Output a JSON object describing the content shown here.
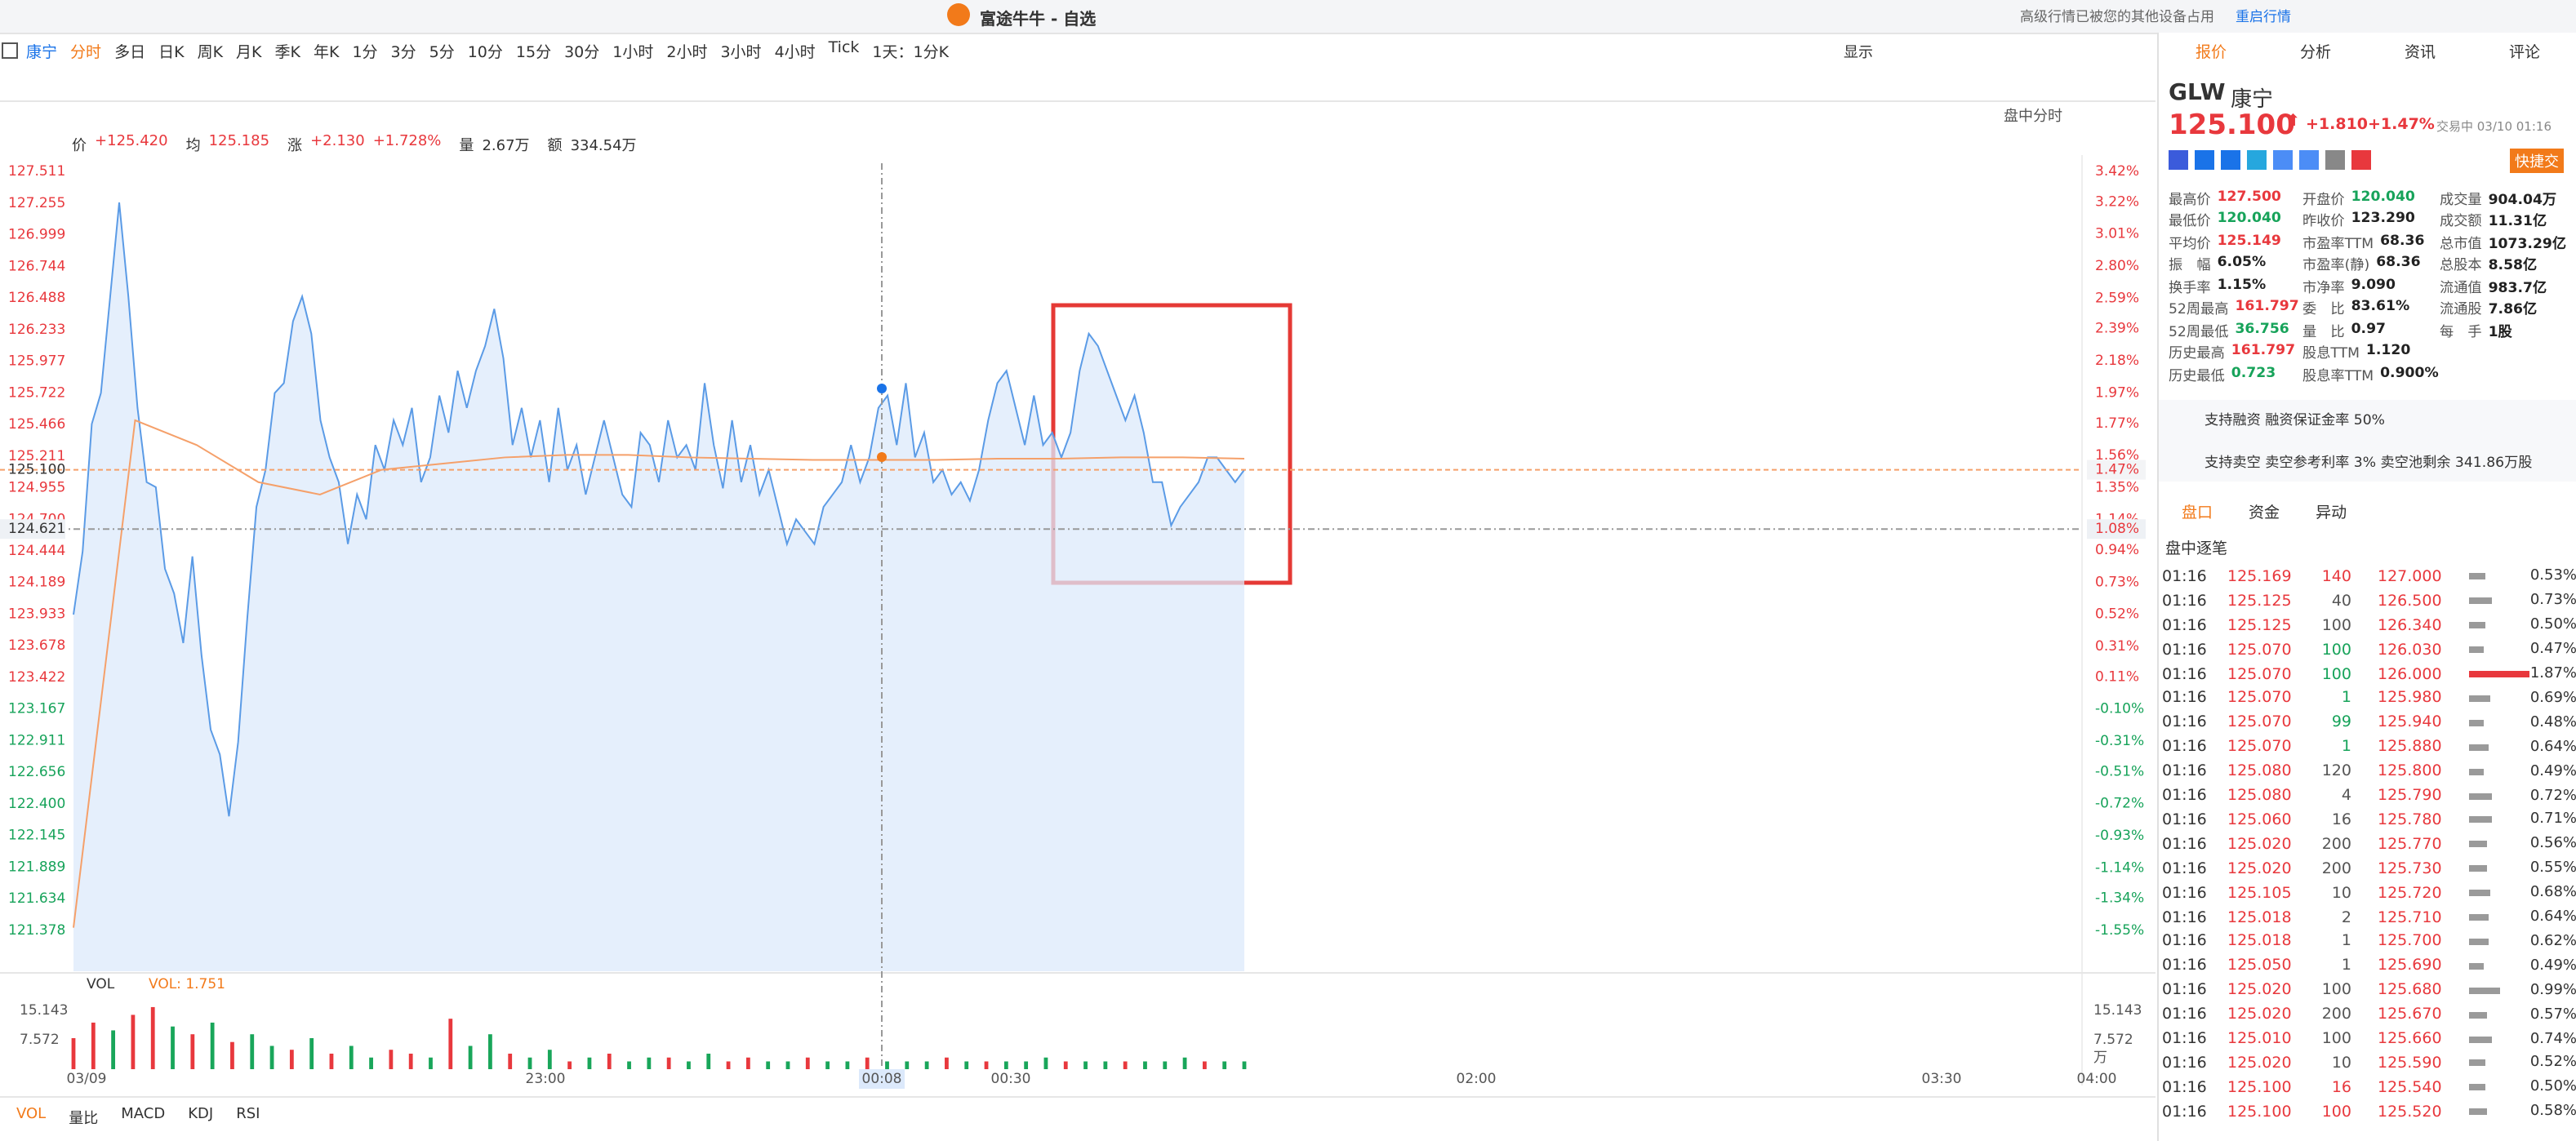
{
  "window": {
    "title": "富途牛牛 - 自选",
    "notice": "高级行情已被您的其他设备占用",
    "restart": "重启行情"
  },
  "toolbar": {
    "stock": "康宁",
    "periods": [
      "分时",
      "多日",
      "日K",
      "周K",
      "月K",
      "季K",
      "年K",
      "1分",
      "3分",
      "5分",
      "10分",
      "15分",
      "30分",
      "1小时",
      "2小时",
      "3小时",
      "4小时",
      "Tick",
      "1天：1分K"
    ],
    "display": "显示"
  },
  "chart": {
    "type": "line",
    "header": {
      "price_label": "价",
      "price": "+125.420",
      "avg_label": "均",
      "avg": "125.185",
      "chg_label": "涨",
      "chg": "+2.130",
      "chg_pct": "+1.728%",
      "vol_label": "量",
      "vol": "2.67万",
      "amt_label": "额",
      "amt": "334.54万"
    },
    "mode": "盘中分时",
    "colors": {
      "up": "#e8383d",
      "down": "#17a35a"
    },
    "ylim": [
      121.378,
      127.511
    ],
    "yticks": [
      127.511,
      127.255,
      126.999,
      126.744,
      126.488,
      126.233,
      125.977,
      125.722,
      125.466,
      125.211,
      124.955,
      {
        "value": 124.7,
        "label": "124.700"
      },
      124.444,
      124.189,
      123.933,
      123.678,
      123.422,
      123.167,
      122.911,
      122.656,
      {
        "value": 122.4,
        "label": "122.400"
      },
      122.145,
      121.889,
      121.634,
      121.378
    ],
    "y2lim": [
      -1.55,
      3.42
    ],
    "y2ticks": [
      {
        "value": 3.42,
        "label": "3.42%"
      },
      {
        "value": 3.22,
        "label": "3.22%"
      },
      {
        "value": 3.01,
        "label": "3.01%"
      },
      {
        "value": 2.8,
        "label": "2.80%"
      },
      {
        "value": 2.59,
        "label": "2.59%"
      },
      {
        "value": 2.39,
        "label": "2.39%"
      },
      {
        "value": 2.18,
        "label": "2.18%"
      },
      {
        "value": 1.97,
        "label": "1.97%"
      },
      {
        "value": 1.77,
        "label": "1.77%"
      },
      {
        "value": 1.56,
        "label": "1.56%"
      },
      {
        "value": 1.35,
        "label": "1.35%"
      },
      {
        "value": 1.14,
        "label": "1.14%"
      },
      {
        "value": 0.94,
        "label": "0.94%"
      },
      {
        "value": 0.73,
        "label": "0.73%"
      },
      {
        "value": 0.52,
        "label": "0.52%"
      },
      {
        "value": 0.31,
        "label": "0.31%"
      },
      {
        "value": 0.11,
        "label": "0.11%"
      },
      {
        "value": -0.1,
        "label": "-0.10%"
      },
      {
        "value": -0.31,
        "label": "-0.31%"
      },
      {
        "value": -0.51,
        "label": "-0.51%"
      },
      {
        "value": -0.72,
        "label": "-0.72%"
      },
      {
        "value": -0.93,
        "label": "-0.93%"
      },
      {
        "value": -1.14,
        "label": "-1.14%"
      },
      {
        "value": -1.34,
        "label": "-1.34%"
      },
      {
        "value": -1.55,
        "label": "-1.55%"
      }
    ],
    "x_labels": [
      "03/09",
      "23:00",
      "00:08",
      "00:30",
      "02:00",
      "03:30",
      "04:00"
    ],
    "current": {
      "price": {
        "value": 125.1,
        "label": "125.100"
      },
      "pct": {
        "value": 1.47,
        "label": "1.47%"
      }
    },
    "crosshair": {
      "price": 124.621,
      "pct": {
        "value": 1.08,
        "label": "1.08%"
      }
    },
    "price": {
      "color": "#5b9be6",
      "values": [
        123.93,
        124.44,
        125.47,
        125.72,
        126.49,
        127.26,
        126.5,
        125.6,
        125.0,
        124.96,
        124.3,
        124.1,
        123.7,
        124.4,
        123.6,
        123.0,
        122.8,
        122.3,
        122.9,
        123.9,
        124.8,
        125.1,
        125.72,
        125.8,
        126.3,
        126.5,
        126.2,
        125.5,
        125.2,
        125.0,
        124.5,
        124.9,
        124.7,
        125.3,
        125.1,
        125.5,
        125.3,
        125.6,
        125.0,
        125.2,
        125.7,
        125.4,
        125.9,
        125.6,
        125.9,
        126.1,
        126.4,
        126.0,
        125.3,
        125.6,
        125.2,
        125.5,
        125.0,
        125.6,
        125.1,
        125.3,
        124.9,
        125.2,
        125.5,
        125.2,
        124.9,
        124.8,
        125.4,
        125.3,
        125.0,
        125.5,
        125.2,
        125.3,
        125.1,
        125.8,
        125.3,
        124.95,
        125.5,
        125.0,
        125.3,
        124.9,
        125.1,
        124.8,
        124.5,
        124.7,
        124.6,
        124.5,
        124.8,
        124.9,
        125.0,
        125.3,
        125.0,
        125.2,
        125.6,
        125.7,
        125.3,
        125.8,
        125.2,
        125.4,
        125.0,
        125.1,
        124.9,
        125.0,
        124.85,
        125.1,
        125.5,
        125.8,
        125.9,
        125.6,
        125.3,
        125.7,
        125.3,
        125.4,
        125.2,
        125.4,
        125.9,
        126.2,
        126.1,
        125.9,
        125.7,
        125.5,
        125.7,
        125.4,
        125.0,
        125.0,
        124.65,
        124.8,
        124.9,
        125.0,
        125.2,
        125.2,
        125.1,
        125.0,
        125.1
      ]
    },
    "average": {
      "color": "#f5a06a",
      "values": [
        121.4,
        125.5,
        125.3,
        125.0,
        124.9,
        125.1,
        125.15,
        125.2,
        125.22,
        125.22,
        125.2,
        125.19,
        125.18,
        125.18,
        125.18,
        125.19,
        125.19,
        125.2,
        125.2,
        125.19
      ]
    },
    "volume": {
      "label": "VOL",
      "value_label": "VOL: 1.751",
      "ylim": [
        0,
        15.143
      ],
      "yticks": [
        15.143,
        7.572
      ],
      "unit": "万",
      "values": [
        8,
        12,
        10,
        14,
        16,
        11,
        9,
        12,
        7,
        9,
        6,
        5,
        8,
        4,
        6,
        3,
        5,
        4,
        3,
        13,
        6,
        9,
        4,
        3,
        5,
        2,
        3,
        4,
        2,
        3,
        3,
        2,
        4,
        2,
        3,
        2,
        2,
        3,
        2,
        2,
        3,
        2,
        2,
        2,
        3,
        2,
        2,
        2,
        2,
        3,
        2,
        2,
        2,
        2,
        2,
        2,
        3,
        2,
        2,
        2
      ],
      "colors": [
        "#e8383d",
        "#e8383d",
        "#19a65a",
        "#e8383d",
        "#e8383d",
        "#19a65a",
        "#e8383d",
        "#19a65a",
        "#e8383d",
        "#19a65a",
        "#19a65a",
        "#e8383d",
        "#19a65a",
        "#e8383d",
        "#19a65a",
        "#19a65a",
        "#e8383d",
        "#e8383d",
        "#19a65a",
        "#e8383d",
        "#19a65a",
        "#19a65a",
        "#e8383d",
        "#19a65a",
        "#19a65a",
        "#e8383d",
        "#19a65a",
        "#e8383d",
        "#19a65a",
        "#19a65a",
        "#e8383d",
        "#19a65a",
        "#19a65a",
        "#e8383d",
        "#e8383d",
        "#19a65a",
        "#19a65a",
        "#e8383d",
        "#19a65a",
        "#19a65a",
        "#e8383d",
        "#19a65a",
        "#19a65a",
        "#19a65a",
        "#e8383d",
        "#19a65a",
        "#e8383d",
        "#19a65a",
        "#19a65a",
        "#19a65a",
        "#e8383d",
        "#19a65a",
        "#19a65a",
        "#e8383d",
        "#19a65a",
        "#19a65a",
        "#19a65a",
        "#e8383d",
        "#19a65a",
        "#19a65a"
      ]
    },
    "indicator_tabs": [
      "VOL",
      "量比",
      "MACD",
      "KDJ",
      "RSI"
    ]
  },
  "side": {
    "tabs": [
      "报价",
      "分析",
      "资讯",
      "评论"
    ],
    "symbol": "GLW",
    "name": "康宁",
    "price": "125.100",
    "change": "+1.810",
    "change_pct": "+1.47%",
    "status": "交易中 03/10 01:16",
    "quick": "快捷交",
    "stats": [
      [
        {
          "label": "最高价",
          "value": "127.500",
          "color": "#e8383d"
        },
        {
          "label": "开盘价",
          "value": "120.040",
          "color": "#17a35a"
        },
        {
          "label": "成交量",
          "value": "904.04万"
        }
      ],
      [
        {
          "label": "最低价",
          "value": "120.040",
          "color": "#17a35a"
        },
        {
          "label": "昨收价",
          "value": "123.290"
        },
        {
          "label": "成交额",
          "value": "11.31亿"
        }
      ],
      [
        {
          "label": "平均价",
          "value": "125.149",
          "color": "#e8383d"
        },
        {
          "label": "市盈率TTM",
          "value": "68.36"
        },
        {
          "label": "总市值",
          "value": "1073.29亿"
        }
      ],
      [
        {
          "label": "振　幅",
          "value": "6.05%"
        },
        {
          "label": "市盈率(静)",
          "value": "68.36"
        },
        {
          "label": "总股本",
          "value": "8.58亿"
        }
      ],
      [
        {
          "label": "换手率",
          "value": "1.15%"
        },
        {
          "label": "市净率",
          "value": "9.090"
        },
        {
          "label": "流通值",
          "value": "983.7亿"
        }
      ],
      [
        {
          "label": "52周最高",
          "value": "161.797",
          "color": "#e8383d"
        },
        {
          "label": "委　比",
          "value": "83.61%"
        },
        {
          "label": "流通股",
          "value": "7.86亿"
        }
      ],
      [
        {
          "label": "52周最低",
          "value": "36.756",
          "color": "#17a35a"
        },
        {
          "label": "量　比",
          "value": "0.97"
        },
        {
          "label": "每　手",
          "value": "1股"
        }
      ],
      [
        {
          "label": "历史最高",
          "value": "161.797",
          "color": "#e8383d"
        },
        {
          "label": "股息TTM",
          "value": "1.120"
        }
      ],
      [
        {
          "label": "历史最低",
          "value": "0.723",
          "color": "#17a35a"
        },
        {
          "label": "股息率TTM",
          "value": "0.900%"
        }
      ]
    ],
    "margin": "支持融资 融资保证金率 50%",
    "short": "支持卖空 卖空参考利率 3% 卖空池剩余 341.86万股",
    "subtabs": [
      "盘口",
      "资金",
      "异动"
    ],
    "ticks_title": "盘中逐笔",
    "ticks": [
      {
        "time": "01:16",
        "price": "125.169",
        "volume": 140,
        "color": "#e8383d"
      },
      {
        "time": "01:16",
        "price": "125.125",
        "volume": 40,
        "color": "#555"
      },
      {
        "time": "01:16",
        "price": "125.125",
        "volume": 100,
        "color": "#555"
      },
      {
        "time": "01:16",
        "price": "125.070",
        "volume": 100,
        "color": "#17a35a"
      },
      {
        "time": "01:16",
        "price": "125.070",
        "volume": 100,
        "color": "#17a35a"
      },
      {
        "time": "01:16",
        "price": "125.070",
        "volume": 1,
        "color": "#17a35a"
      },
      {
        "time": "01:16",
        "price": "125.070",
        "volume": 99,
        "color": "#17a35a"
      },
      {
        "time": "01:16",
        "price": "125.070",
        "volume": 1,
        "color": "#17a35a"
      },
      {
        "time": "01:16",
        "price": "125.080",
        "volume": 120,
        "color": "#555"
      },
      {
        "time": "01:16",
        "price": "125.080",
        "volume": 4,
        "color": "#555"
      },
      {
        "time": "01:16",
        "price": "125.060",
        "volume": 16,
        "color": "#555"
      },
      {
        "time": "01:16",
        "price": "125.020",
        "volume": 200,
        "color": "#555"
      },
      {
        "time": "01:16",
        "price": "125.020",
        "volume": 200,
        "color": "#555"
      },
      {
        "time": "01:16",
        "price": "125.105",
        "volume": 10,
        "color": "#555"
      },
      {
        "time": "01:16",
        "price": "125.018",
        "volume": 2,
        "color": "#555"
      },
      {
        "time": "01:16",
        "price": "125.018",
        "volume": 1,
        "color": "#555"
      },
      {
        "time": "01:16",
        "price": "125.050",
        "volume": 1,
        "color": "#555"
      },
      {
        "time": "01:16",
        "price": "125.020",
        "volume": 100,
        "color": "#555"
      },
      {
        "time": "01:16",
        "price": "125.020",
        "volume": 200,
        "color": "#555"
      },
      {
        "time": "01:16",
        "price": "125.010",
        "volume": 100,
        "color": "#555"
      },
      {
        "time": "01:16",
        "price": "125.020",
        "volume": 10,
        "color": "#555"
      },
      {
        "time": "01:16",
        "price": "125.100",
        "volume": 16,
        "color": "#e8383d"
      },
      {
        "time": "01:16",
        "price": "125.100",
        "volume": 100,
        "color": "#e8383d"
      }
    ],
    "levels": [
      {
        "price": "127.000",
        "pct": 0.53,
        "pct_label": "0.53%"
      },
      {
        "price": "126.500",
        "pct": 0.73,
        "pct_label": "0.73%"
      },
      {
        "price": "126.340",
        "pct": 0.5,
        "pct_label": "0.50%"
      },
      {
        "price": "126.030",
        "pct": 0.47,
        "pct_label": "0.47%"
      },
      {
        "price": "126.000",
        "pct": 1.87,
        "pct_label": "1.87%",
        "color": "#e8383d"
      },
      {
        "price": "125.980",
        "pct": 0.69,
        "pct_label": "0.69%"
      },
      {
        "price": "125.940",
        "pct": 0.48,
        "pct_label": "0.48%"
      },
      {
        "price": "125.880",
        "pct": 0.64,
        "pct_label": "0.64%"
      },
      {
        "price": "125.800",
        "pct": 0.49,
        "pct_label": "0.49%"
      },
      {
        "price": "125.790",
        "pct": 0.72,
        "pct_label": "0.72%"
      },
      {
        "price": "125.780",
        "pct": 0.71,
        "pct_label": "0.71%"
      },
      {
        "price": "125.770",
        "pct": 0.56,
        "pct_label": "0.56%"
      },
      {
        "price": "125.730",
        "pct": 0.55,
        "pct_label": "0.55%"
      },
      {
        "price": "125.720",
        "pct": 0.68,
        "pct_label": "0.68%"
      },
      {
        "price": "125.710",
        "pct": 0.64,
        "pct_label": "0.64%"
      },
      {
        "price": "125.700",
        "pct": 0.62,
        "pct_label": "0.62%"
      },
      {
        "price": "125.690",
        "pct": 0.49,
        "pct_label": "0.49%"
      },
      {
        "price": "125.680",
        "pct": 0.99,
        "pct_label": "0.99%"
      },
      {
        "price": "125.670",
        "pct": 0.57,
        "pct_label": "0.57%"
      },
      {
        "price": "125.660",
        "pct": 0.74,
        "pct_label": "0.74%"
      },
      {
        "price": "125.590",
        "pct": 0.52,
        "pct_label": "0.52%"
      },
      {
        "price": "125.540",
        "pct": 0.5,
        "pct_label": "0.50%"
      },
      {
        "price": "125.520",
        "pct": 0.58,
        "pct_label": "0.58%"
      }
    ]
  }
}
